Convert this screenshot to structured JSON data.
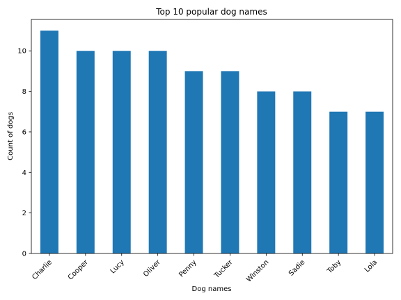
{
  "chart_data": {
    "type": "bar",
    "title": "Top 10 popular dog names",
    "xlabel": "Dog names",
    "ylabel": "Count of dogs",
    "categories": [
      "Charlie",
      "Cooper",
      "Lucy",
      "Oliver",
      "Penny",
      "Tucker",
      "Winston",
      "Sadie",
      "Toby",
      "Lola"
    ],
    "values": [
      11,
      10,
      10,
      10,
      9,
      9,
      8,
      8,
      7,
      7
    ],
    "ylim": [
      0,
      11.55
    ],
    "yticks": [
      0,
      2,
      4,
      6,
      8,
      10
    ],
    "bar_color": "#1f77b4",
    "grid": false,
    "legend": "none"
  }
}
